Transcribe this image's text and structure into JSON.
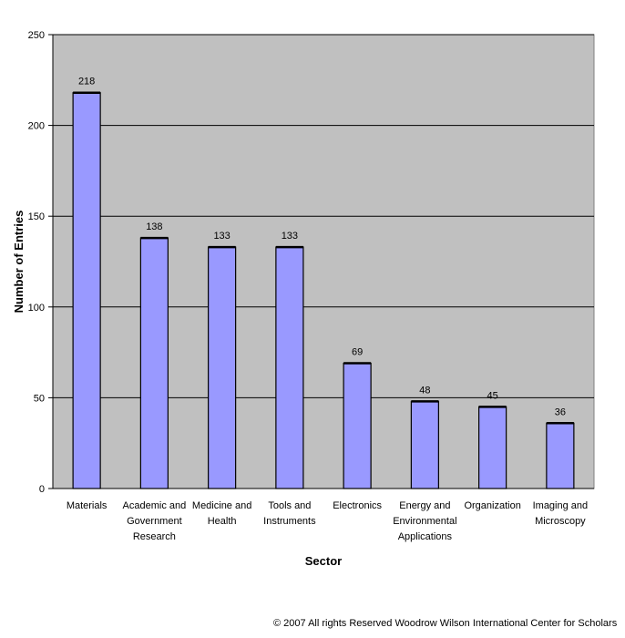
{
  "chart_data": {
    "type": "bar",
    "categories": [
      [
        "Materials"
      ],
      [
        "Academic and",
        "Government",
        "Research"
      ],
      [
        "Medicine and",
        "Health"
      ],
      [
        "Tools and",
        "Instruments"
      ],
      [
        "Electronics"
      ],
      [
        "Energy and",
        "Environmental",
        "Applications"
      ],
      [
        "Organization"
      ],
      [
        "Imaging and",
        "Microscopy"
      ]
    ],
    "values": [
      218,
      138,
      133,
      133,
      69,
      48,
      45,
      36
    ],
    "xlabel": "Sector",
    "ylabel": "Number of Entries",
    "ylim": [
      0,
      250
    ],
    "yticks": [
      0,
      50,
      100,
      150,
      200,
      250
    ],
    "grid": true,
    "colors": {
      "bar": "#9999ff",
      "plot_bg": "#c0c0c0",
      "grid": "#000000"
    }
  },
  "footer": {
    "copyright": "© 2007 All rights Reserved Woodrow Wilson International Center for Scholars"
  }
}
